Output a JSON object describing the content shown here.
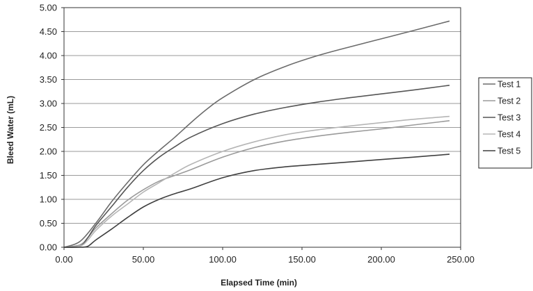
{
  "chart_data": {
    "type": "line",
    "xlabel": "Elapsed Time (min)",
    "ylabel": "Bleed Water (mL)",
    "xlim": [
      0,
      250
    ],
    "ylim": [
      0,
      5
    ],
    "x_ticks": [
      "0.00",
      "50.00",
      "100.00",
      "150.00",
      "200.00",
      "250.00"
    ],
    "y_ticks": [
      "0.00",
      "0.50",
      "1.00",
      "1.50",
      "2.00",
      "2.50",
      "3.00",
      "3.50",
      "4.00",
      "4.50",
      "5.00"
    ],
    "grid": "horizontal",
    "legend_position": "right",
    "series": [
      {
        "name": "Test 1",
        "color": "#6b6b6b",
        "x": [
          0,
          10,
          20,
          30,
          40,
          50,
          60,
          70,
          80,
          90,
          100,
          120,
          140,
          160,
          180,
          200,
          220,
          243
        ],
        "y": [
          0,
          0.12,
          0.5,
          0.95,
          1.35,
          1.72,
          2.02,
          2.3,
          2.6,
          2.88,
          3.12,
          3.5,
          3.78,
          4.0,
          4.18,
          4.35,
          4.52,
          4.72
        ]
      },
      {
        "name": "Test 2",
        "color": "#9a9a9a",
        "x": [
          0,
          10,
          15,
          20,
          30,
          40,
          50,
          60,
          70,
          80,
          100,
          120,
          140,
          160,
          180,
          200,
          220,
          243
        ],
        "y": [
          0,
          0.05,
          0.2,
          0.4,
          0.7,
          0.98,
          1.2,
          1.38,
          1.5,
          1.62,
          1.88,
          2.08,
          2.22,
          2.32,
          2.4,
          2.47,
          2.55,
          2.64
        ]
      },
      {
        "name": "Test 3",
        "color": "#555555",
        "x": [
          0,
          10,
          15,
          20,
          30,
          40,
          50,
          60,
          70,
          80,
          100,
          120,
          140,
          160,
          180,
          200,
          220,
          243
        ],
        "y": [
          0,
          0.02,
          0.2,
          0.45,
          0.85,
          1.25,
          1.6,
          1.88,
          2.1,
          2.3,
          2.58,
          2.78,
          2.92,
          3.03,
          3.12,
          3.2,
          3.28,
          3.38
        ]
      },
      {
        "name": "Test 4",
        "color": "#b5b5b5",
        "x": [
          0,
          10,
          15,
          20,
          30,
          40,
          50,
          60,
          70,
          80,
          100,
          120,
          140,
          160,
          180,
          200,
          220,
          243
        ],
        "y": [
          0,
          0.02,
          0.15,
          0.35,
          0.65,
          0.9,
          1.15,
          1.35,
          1.55,
          1.73,
          2.0,
          2.2,
          2.35,
          2.45,
          2.53,
          2.6,
          2.67,
          2.73
        ]
      },
      {
        "name": "Test 5",
        "color": "#3f3f3f",
        "x": [
          0,
          10,
          15,
          20,
          30,
          40,
          50,
          60,
          70,
          80,
          100,
          120,
          140,
          160,
          180,
          200,
          220,
          243
        ],
        "y": [
          0,
          0.0,
          0.02,
          0.15,
          0.38,
          0.62,
          0.84,
          1.0,
          1.12,
          1.22,
          1.45,
          1.6,
          1.68,
          1.73,
          1.78,
          1.83,
          1.88,
          1.94
        ]
      }
    ]
  }
}
